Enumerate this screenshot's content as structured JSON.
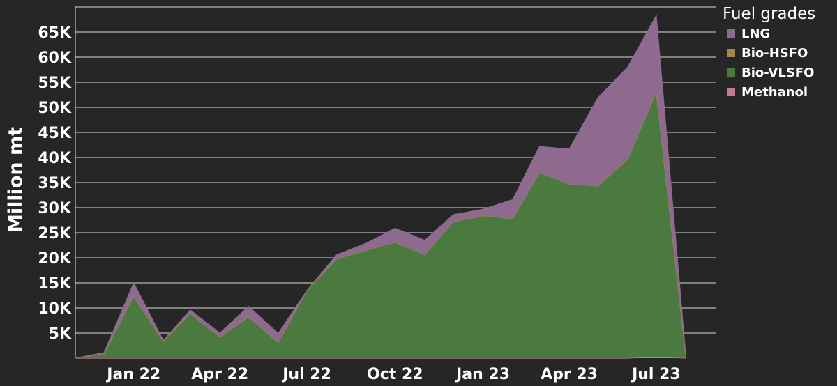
{
  "chart_data": {
    "type": "area",
    "stacked": true,
    "ylabel": "Million mt",
    "yticks": [
      5000,
      10000,
      15000,
      20000,
      25000,
      30000,
      35000,
      40000,
      45000,
      50000,
      55000,
      60000,
      65000
    ],
    "ytick_labels": [
      "5K",
      "10K",
      "15K",
      "20K",
      "25K",
      "30K",
      "35K",
      "40K",
      "45K",
      "50K",
      "55K",
      "60K",
      "65K"
    ],
    "ylim": [
      0,
      70000
    ],
    "xlim": [
      "2021-11-01",
      "2023-09-01"
    ],
    "xticks": [
      "2022-01-01",
      "2022-04-01",
      "2022-07-01",
      "2022-10-01",
      "2023-01-01",
      "2023-04-01",
      "2023-07-01"
    ],
    "xtick_labels": [
      "Jan 22",
      "Apr 22",
      "Jul 22",
      "Oct 22",
      "Jan 23",
      "Apr 23",
      "Jul 23"
    ],
    "x": [
      "2021-11-01",
      "2021-12-01",
      "2022-01-01",
      "2022-02-01",
      "2022-03-01",
      "2022-04-01",
      "2022-05-01",
      "2022-06-01",
      "2022-07-01",
      "2022-08-01",
      "2022-09-01",
      "2022-10-01",
      "2022-11-01",
      "2022-12-01",
      "2023-01-01",
      "2023-02-01",
      "2023-03-01",
      "2023-04-01",
      "2023-05-01",
      "2023-06-01",
      "2023-07-01",
      "2023-08-01"
    ],
    "series": [
      {
        "name": "Methanol",
        "color": "#c27c8a",
        "values": [
          0,
          0,
          0,
          0,
          0,
          0,
          0,
          0,
          0,
          0,
          0,
          0,
          0,
          0,
          0,
          0,
          0,
          0,
          0,
          0,
          300,
          0
        ]
      },
      {
        "name": "Bio-VLSFO",
        "color": "#4a7a40",
        "values": [
          0,
          900,
          12300,
          3300,
          8900,
          4200,
          8200,
          3100,
          13500,
          19800,
          21500,
          23100,
          20600,
          27200,
          28400,
          27800,
          37000,
          34700,
          34300,
          39600,
          52700,
          0
        ]
      },
      {
        "name": "Bio-HSFO",
        "color": "#a08a4a",
        "values": [
          0,
          0,
          0,
          0,
          0,
          0,
          0,
          0,
          0,
          0,
          0,
          0,
          0,
          0,
          0,
          0,
          0,
          0,
          0,
          0,
          0,
          0
        ]
      },
      {
        "name": "LNG",
        "color": "#8f6a8f",
        "values": [
          0,
          200,
          2700,
          200,
          700,
          800,
          2100,
          1800,
          0,
          800,
          1400,
          2800,
          2900,
          1400,
          1300,
          3800,
          5200,
          7000,
          17600,
          18400,
          15300,
          0
        ]
      }
    ],
    "legend": {
      "title": "Fuel grades",
      "position": "top-right",
      "entries": [
        {
          "label": "LNG",
          "color": "#8f6a8f"
        },
        {
          "label": "Bio-HSFO",
          "color": "#a08a4a"
        },
        {
          "label": "Bio-VLSFO",
          "color": "#4a7a40"
        },
        {
          "label": "Methanol",
          "color": "#c27c8a"
        }
      ]
    },
    "grid": "horizontal",
    "background": "#262626"
  }
}
